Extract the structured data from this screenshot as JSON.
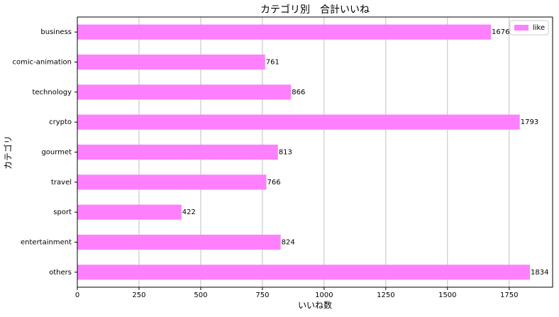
{
  "chart_data": {
    "type": "barh",
    "title": "カテゴリ別　合計いいね",
    "xlabel": "いいね数",
    "ylabel": "カテゴリ",
    "categories": [
      "business",
      "comic-animation",
      "technology",
      "crypto",
      "gourmet",
      "travel",
      "sport",
      "entertainment",
      "others"
    ],
    "series": [
      {
        "name": "like",
        "color": "#ff80ff",
        "values": [
          1676,
          761,
          866,
          1793,
          813,
          766,
          422,
          824,
          1834
        ]
      }
    ],
    "xlim": [
      0,
      1926
    ],
    "xticks": [
      0,
      250,
      500,
      750,
      1000,
      1250,
      1500,
      1750
    ],
    "grid": true,
    "legend": "upper right"
  }
}
